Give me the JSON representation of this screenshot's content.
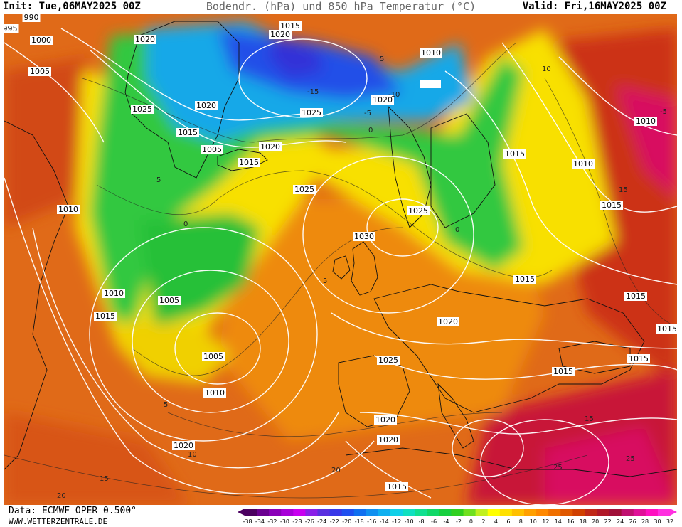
{
  "header": {
    "init": "Init: Tue,06MAY2025 00Z",
    "title": "Bodendr. (hPa) und 850 hPa Temperatur (°C)",
    "valid": "Valid: Fri,16MAY2025 00Z"
  },
  "footer": {
    "source": "Data: ECMWF OPER 0.500°",
    "website": "WWW.WETTERZENTRALE.DE"
  },
  "colorbar": {
    "ticks": [
      "-38",
      "-34",
      "-32",
      "-30",
      "-28",
      "-26",
      "-24",
      "-22",
      "-20",
      "-18",
      "-16",
      "-14",
      "-12",
      "-10",
      "-8",
      "-6",
      "-4",
      "-2",
      "0",
      "2",
      "4",
      "6",
      "8",
      "10",
      "12",
      "14",
      "16",
      "18",
      "20",
      "22",
      "24",
      "26",
      "28",
      "30",
      "32"
    ],
    "colors": [
      "#4b0060",
      "#6a0090",
      "#8a00b8",
      "#a800d8",
      "#c800f0",
      "#8a20e8",
      "#5a30e0",
      "#3838e8",
      "#2050f0",
      "#1070f0",
      "#1090f0",
      "#10b0f0",
      "#10d0e8",
      "#10e0c0",
      "#10e090",
      "#10d868",
      "#18d040",
      "#30d020",
      "#70e020",
      "#c0f020",
      "#ffff00",
      "#ffe000",
      "#ffc000",
      "#ffa000",
      "#ff8800",
      "#f07000",
      "#e05800",
      "#d04000",
      "#c02818",
      "#b01828",
      "#a01038",
      "#c01070",
      "#e01098",
      "#ff10c0",
      "#ff30e0"
    ]
  },
  "map_legend": {
    "colors": {
      "ocean_warm": "#e06818",
      "cold_deep": "#2080e8",
      "mid_green": "#30c840",
      "warm_yellow": "#f8e000",
      "hot": "#c01830"
    }
  },
  "isobar_labels": [
    "990",
    "995",
    "1000",
    "1005",
    "1005",
    "1005",
    "1005",
    "1010",
    "1010",
    "1010",
    "1010",
    "1010",
    "1010",
    "1015",
    "1015",
    "1015",
    "1015",
    "1015",
    "1015",
    "1015",
    "1015",
    "1015",
    "1015",
    "1015",
    "1015",
    "1020",
    "1020",
    "1020",
    "1020",
    "1020",
    "1020",
    "1020",
    "1020",
    "1020",
    "1025",
    "1025",
    "1025",
    "1025",
    "1025",
    "1030"
  ],
  "temperature_labels": [
    "0",
    "0",
    "0",
    "5",
    "5",
    "5",
    "5",
    "10",
    "10",
    "15",
    "15",
    "15",
    "20",
    "20",
    "25",
    "25",
    "-5",
    "-5",
    "-10",
    "-15"
  ]
}
